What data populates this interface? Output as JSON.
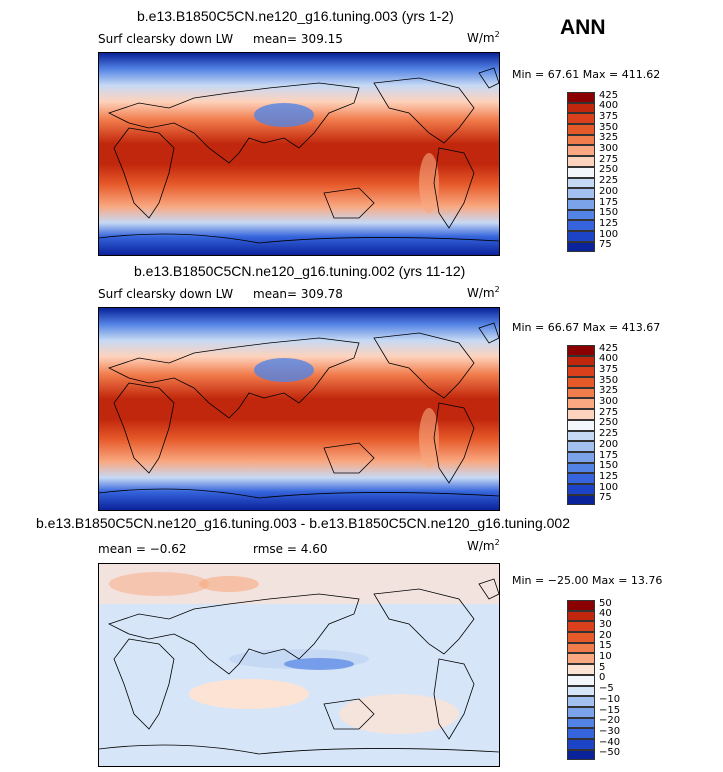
{
  "season": "ANN",
  "panels": [
    {
      "title": "b.e13.B1850C5CN.ne120_g16.tuning.003 (yrs 1-2)",
      "left_label": "Surf clearsky down LW",
      "stat_label": "mean=",
      "stat_value": "309.15",
      "stat2_label": "",
      "stat2_value": "",
      "units": "W/m",
      "units_exp": "2",
      "min_label": "Min =",
      "min_value": "67.61",
      "max_label": "Max =",
      "max_value": "411.62"
    },
    {
      "title": "b.e13.B1850C5CN.ne120_g16.tuning.002 (yrs 11-12)",
      "left_label": "Surf clearsky down LW",
      "stat_label": "mean=",
      "stat_value": "309.78",
      "stat2_label": "",
      "stat2_value": "",
      "units": "W/m",
      "units_exp": "2",
      "min_label": "Min =",
      "min_value": "66.67",
      "max_label": "Max =",
      "max_value": "413.67"
    },
    {
      "title": "b.e13.B1850C5CN.ne120_g16.tuning.003 - b.e13.B1850C5CN.ne120_g16.tuning.002",
      "left_label": "",
      "stat_label": "mean =",
      "stat_value": "−0.62",
      "stat2_label": "rmse =",
      "stat2_value": "4.60",
      "units": "W/m",
      "units_exp": "2",
      "min_label": "Min =",
      "min_value": "−25.00",
      "max_label": "Max =",
      "max_value": "13.76"
    }
  ],
  "chart_data": [
    {
      "type": "heatmap",
      "title": "b.e13.B1850C5CN.ne120_g16.tuning.003 (yrs 1-2)",
      "variable": "Surf clearsky down LW",
      "units": "W/m2",
      "mean": 309.15,
      "min": 67.61,
      "max": 411.62,
      "colorbar_levels": [
        "425",
        "400",
        "375",
        "350",
        "325",
        "300",
        "275",
        "250",
        "225",
        "200",
        "175",
        "150",
        "125",
        "100",
        "75"
      ],
      "colorbar_colors": [
        "#8b0000",
        "#c1270c",
        "#d9401b",
        "#e65a2a",
        "#f17c4c",
        "#f9a881",
        "#fdd3bd",
        "#f3f7fc",
        "#c6d9f4",
        "#a2c0f0",
        "#7aa3ea",
        "#5383e4",
        "#3564dc",
        "#1d43c7",
        "#0a229a"
      ]
    },
    {
      "type": "heatmap",
      "title": "b.e13.B1850C5CN.ne120_g16.tuning.002 (yrs 11-12)",
      "variable": "Surf clearsky down LW",
      "units": "W/m2",
      "mean": 309.78,
      "min": 66.67,
      "max": 413.67,
      "colorbar_levels": [
        "425",
        "400",
        "375",
        "350",
        "325",
        "300",
        "275",
        "250",
        "225",
        "200",
        "175",
        "150",
        "125",
        "100",
        "75"
      ],
      "colorbar_colors": [
        "#8b0000",
        "#c1270c",
        "#d9401b",
        "#e65a2a",
        "#f17c4c",
        "#f9a881",
        "#fdd3bd",
        "#f3f7fc",
        "#c6d9f4",
        "#a2c0f0",
        "#7aa3ea",
        "#5383e4",
        "#3564dc",
        "#1d43c7",
        "#0a229a"
      ]
    },
    {
      "type": "heatmap",
      "title": "b.e13.B1850C5CN.ne120_g16.tuning.003 - b.e13.B1850C5CN.ne120_g16.tuning.002",
      "units": "W/m2",
      "mean": -0.62,
      "rmse": 4.6,
      "min": -25.0,
      "max": 13.76,
      "colorbar_levels": [
        "50",
        "40",
        "30",
        "20",
        "15",
        "10",
        "5",
        "0",
        "−5",
        "−10",
        "−15",
        "−20",
        "−30",
        "−40",
        "−50"
      ],
      "colorbar_colors": [
        "#8b0000",
        "#c1270c",
        "#d9401b",
        "#e65a2a",
        "#f17c4c",
        "#f9a881",
        "#fde3d4",
        "#f3f7fc",
        "#d6e5f8",
        "#a2c0f0",
        "#7aa3ea",
        "#5383e4",
        "#3564dc",
        "#1d43c7",
        "#0a229a"
      ]
    }
  ]
}
